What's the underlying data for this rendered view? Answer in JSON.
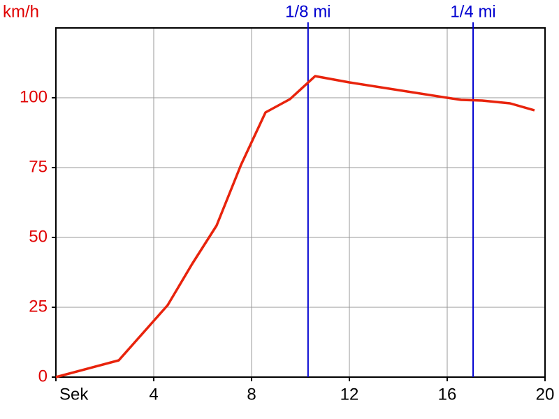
{
  "chart_data": {
    "type": "line",
    "y_label": "km/h",
    "x": [
      0,
      2.57,
      4.57,
      5.57,
      6.57,
      7.57,
      8.57,
      9.57,
      10.6,
      12,
      16,
      16.57,
      17.43,
      18.57,
      19.57
    ],
    "series": [
      {
        "color": "#e8230c",
        "values": [
          0,
          6,
          25.75,
          40.5,
          54.25,
          76,
          94.75,
          99.5,
          107.75,
          105.5,
          100,
          99.25,
          99,
          98,
          95.5
        ]
      }
    ],
    "xlim": [
      0,
      20
    ],
    "ylim": [
      0,
      125
    ],
    "xticks": [
      {
        "value": 0,
        "label": "Sek"
      },
      4,
      8,
      12,
      16,
      20
    ],
    "yticks": [
      0,
      25,
      50,
      75,
      100
    ],
    "grid": true,
    "markers": [
      {
        "label": "1/8 mi",
        "x": 10.31,
        "color": "#0000d0"
      },
      {
        "label": "1/4 mi",
        "x": 17.06,
        "color": "#0000d0"
      }
    ]
  }
}
